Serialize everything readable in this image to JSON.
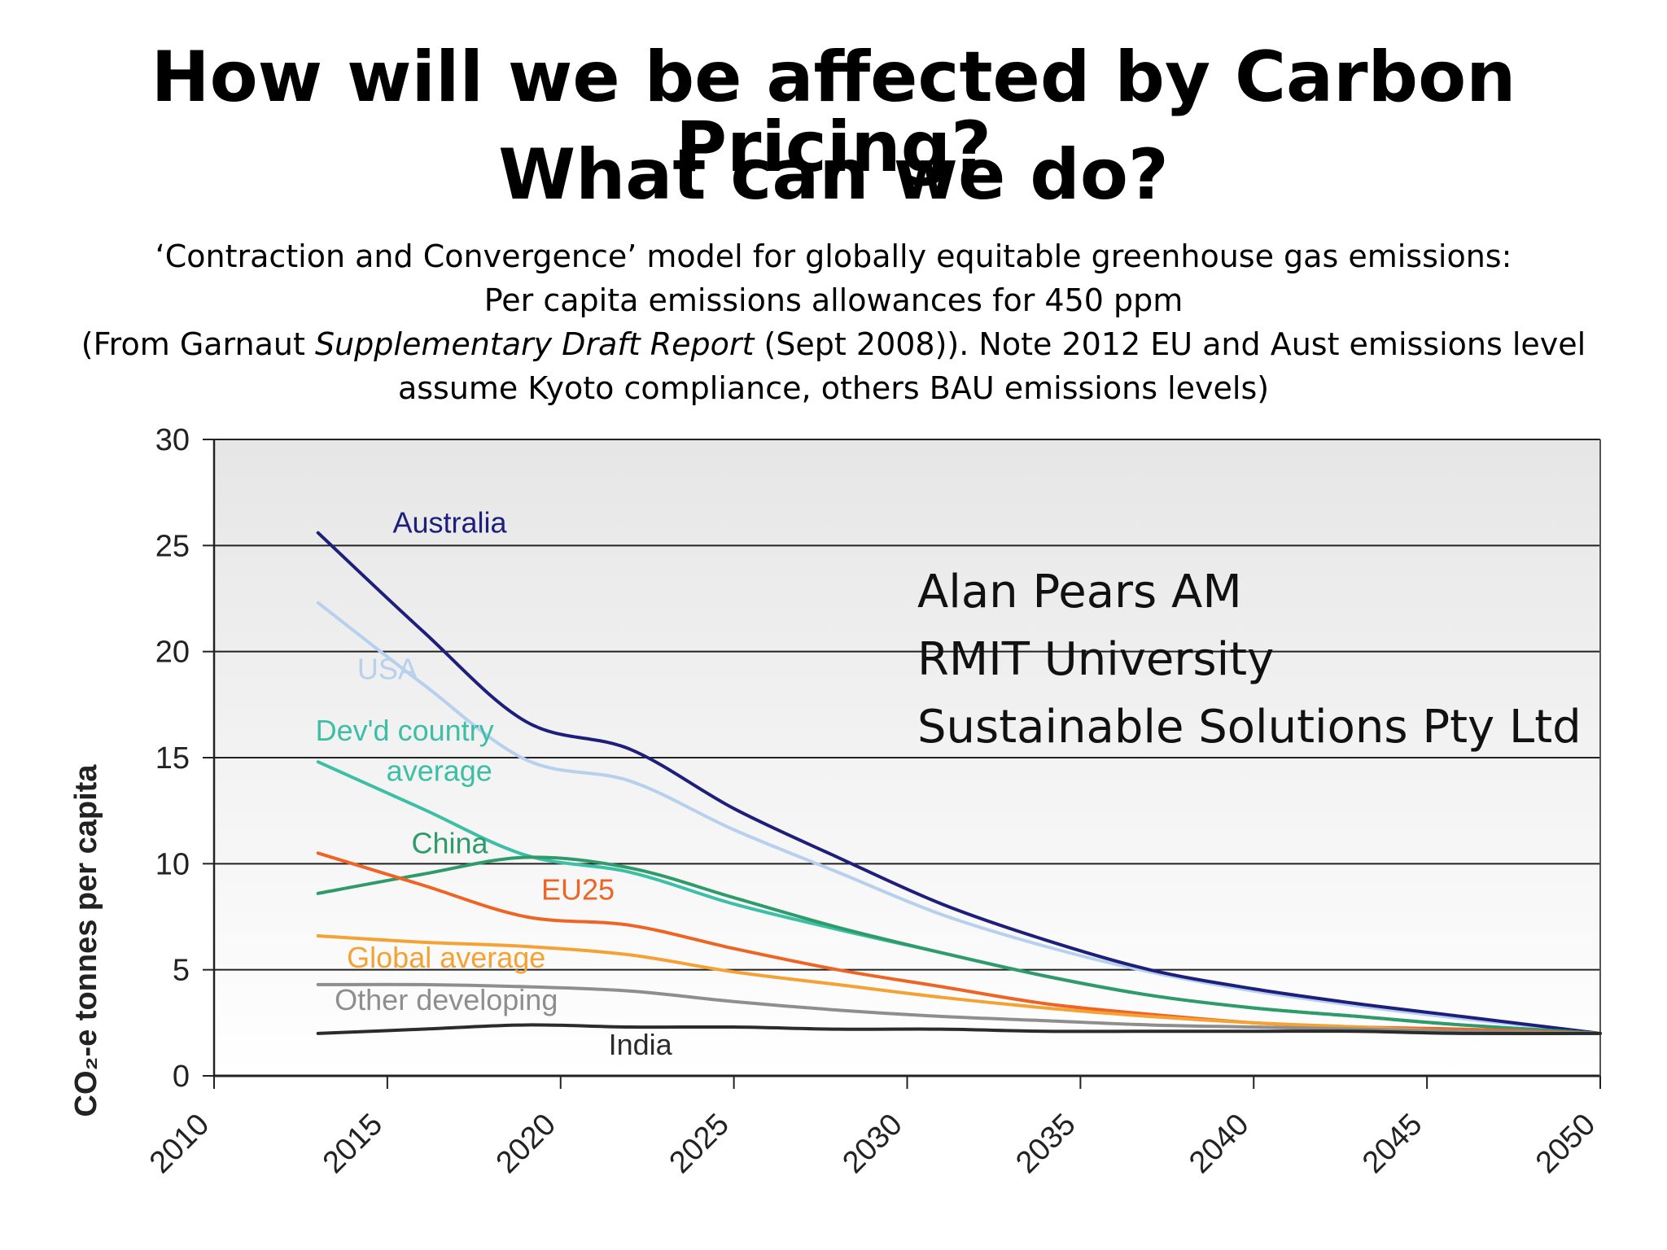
{
  "slide": {
    "title_line1": "How will we be affected by Carbon Pricing?",
    "title_line2": "What can we do?",
    "subtitle_line1": "‘Contraction and Convergence’ model for globally equitable greenhouse gas emissions:",
    "subtitle_line2": "Per capita emissions allowances for 450 ppm",
    "subtitle_line3_prefix": "(From Garnaut ",
    "subtitle_line3_italic": "Supplementary Draft Report",
    "subtitle_line3_suffix": " (Sept 2008)). Note 2012 EU and Aust emissions level",
    "subtitle_line4": "assume Kyoto compliance, others BAU emissions levels)"
  },
  "credits": {
    "line1": "Alan Pears AM",
    "line2": "RMIT University",
    "line3": "Sustainable Solutions Pty Ltd"
  },
  "colors": {
    "australia": "#1e1f7a",
    "usa": "#b7d0ee",
    "devd": "#3cbfa5",
    "china": "#2f9a6a",
    "eu25": "#ee6425",
    "global": "#f4a233",
    "other": "#8e8e8e",
    "india": "#2b2b2b",
    "plot_bg_top": "#e6e6e6",
    "plot_bg_bottom": "#ffffff",
    "grid": "#222222"
  },
  "chart_data": {
    "type": "line",
    "title": "",
    "xlabel": "",
    "ylabel": "CO₂-e tonnes per capita",
    "xlim": [
      2010,
      2050
    ],
    "ylim": [
      0,
      30
    ],
    "x_ticks": [
      "2010",
      "2015",
      "2020",
      "2025",
      "2030",
      "2035",
      "2040",
      "2045",
      "2050"
    ],
    "y_ticks": [
      "0",
      "5",
      "10",
      "15",
      "20",
      "25",
      "30"
    ],
    "grid": true,
    "legend": "inline labels",
    "series": [
      {
        "key": "usa",
        "name": "USA",
        "x": [
          2013,
          2016,
          2019,
          2022,
          2025,
          2028,
          2031,
          2034,
          2037,
          2040,
          2043,
          2046,
          2050
        ],
        "y": [
          22.3,
          18.5,
          14.9,
          13.9,
          11.6,
          9.6,
          7.6,
          6.1,
          4.9,
          4.0,
          3.3,
          2.7,
          2.0
        ]
      },
      {
        "key": "australia",
        "name": "Australia",
        "x": [
          2013,
          2016,
          2019,
          2022,
          2025,
          2028,
          2031,
          2034,
          2037,
          2040,
          2043,
          2046,
          2050
        ],
        "y": [
          25.6,
          21.0,
          16.7,
          15.4,
          12.6,
          10.3,
          8.1,
          6.4,
          5.0,
          4.1,
          3.4,
          2.8,
          2.0
        ]
      },
      {
        "key": "devd",
        "name": "Dev'd country average",
        "x": [
          2013,
          2016,
          2019,
          2022,
          2025,
          2028,
          2031,
          2034,
          2037,
          2040,
          2043,
          2046,
          2050
        ],
        "y": [
          14.8,
          12.6,
          10.4,
          9.6,
          8.1,
          6.9,
          5.8,
          4.7,
          3.8,
          3.2,
          2.8,
          2.4,
          2.0
        ]
      },
      {
        "key": "china",
        "name": "China",
        "x": [
          2013,
          2016,
          2019,
          2022,
          2025,
          2028,
          2031,
          2034,
          2037,
          2040,
          2043,
          2046,
          2050
        ],
        "y": [
          8.6,
          9.5,
          10.3,
          9.8,
          8.4,
          7.0,
          5.8,
          4.7,
          3.8,
          3.2,
          2.8,
          2.4,
          2.0
        ]
      },
      {
        "key": "eu25",
        "name": "EU25",
        "x": [
          2013,
          2016,
          2019,
          2022,
          2025,
          2028,
          2031,
          2034,
          2037,
          2040,
          2043,
          2046,
          2050
        ],
        "y": [
          10.5,
          9.0,
          7.5,
          7.1,
          6.0,
          5.0,
          4.2,
          3.4,
          2.9,
          2.5,
          2.3,
          2.2,
          2.0
        ]
      },
      {
        "key": "global",
        "name": "Global average",
        "x": [
          2013,
          2016,
          2019,
          2022,
          2025,
          2028,
          2031,
          2034,
          2037,
          2040,
          2043,
          2046,
          2050
        ],
        "y": [
          6.6,
          6.3,
          6.1,
          5.7,
          4.9,
          4.3,
          3.7,
          3.2,
          2.8,
          2.5,
          2.3,
          2.1,
          2.0
        ]
      },
      {
        "key": "other",
        "name": "Other developing",
        "x": [
          2013,
          2016,
          2019,
          2022,
          2025,
          2028,
          2031,
          2034,
          2037,
          2040,
          2043,
          2046,
          2050
        ],
        "y": [
          4.3,
          4.3,
          4.2,
          4.0,
          3.5,
          3.1,
          2.8,
          2.6,
          2.4,
          2.3,
          2.2,
          2.1,
          2.0
        ]
      },
      {
        "key": "india",
        "name": "India",
        "x": [
          2013,
          2016,
          2019,
          2022,
          2025,
          2028,
          2031,
          2034,
          2037,
          2040,
          2043,
          2046,
          2050
        ],
        "y": [
          2.0,
          2.2,
          2.4,
          2.3,
          2.3,
          2.2,
          2.2,
          2.1,
          2.1,
          2.1,
          2.1,
          2.0,
          2.0
        ]
      }
    ],
    "series_labels": [
      {
        "key": "australia",
        "text": "Australia",
        "at": [
          2016.8,
          25.6
        ]
      },
      {
        "key": "usa",
        "text": "USA",
        "at": [
          2015.0,
          18.7
        ]
      },
      {
        "key": "devd",
        "text": "Dev'd country",
        "at": [
          2015.5,
          15.8
        ]
      },
      {
        "key": "devd",
        "text": "average",
        "at": [
          2016.5,
          13.9
        ]
      },
      {
        "key": "china",
        "text": "China",
        "at": [
          2016.8,
          10.5
        ]
      },
      {
        "key": "eu25",
        "text": "EU25",
        "at": [
          2020.5,
          8.3
        ]
      },
      {
        "key": "global",
        "text": "Global average",
        "at": [
          2016.7,
          5.1
        ]
      },
      {
        "key": "other",
        "text": "Other developing",
        "at": [
          2016.7,
          3.1
        ]
      },
      {
        "key": "india",
        "text": "India",
        "at": [
          2022.3,
          1.0
        ]
      }
    ]
  }
}
